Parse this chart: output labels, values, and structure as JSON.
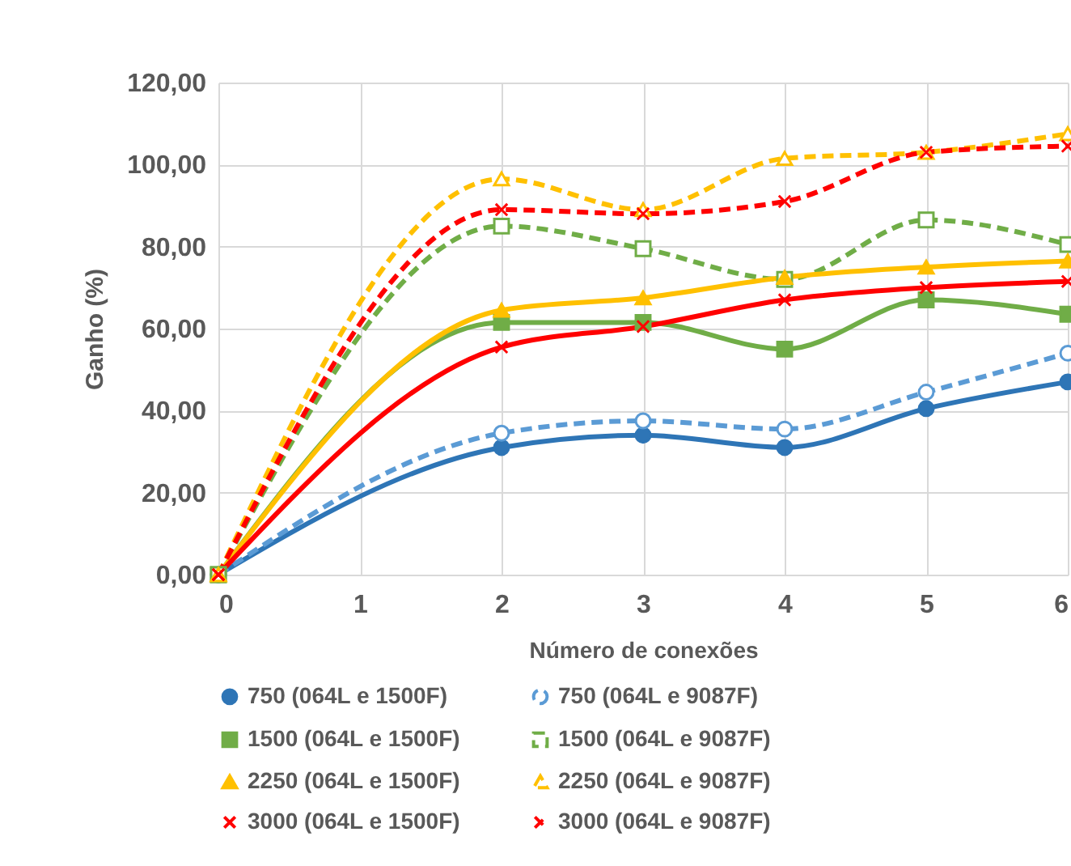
{
  "chart_data": {
    "type": "line",
    "xlabel": "Número de conexões",
    "ylabel": "Ganho (%)",
    "x": [
      0,
      2,
      3,
      4,
      5,
      6
    ],
    "xlim": [
      0,
      6
    ],
    "xticks": [
      0,
      1,
      2,
      3,
      4,
      5,
      6
    ],
    "ylim": [
      0,
      120
    ],
    "yticks": [
      {
        "value": 0,
        "label": "0,00"
      },
      {
        "value": 20,
        "label": "20,00"
      },
      {
        "value": 40,
        "label": "40,00"
      },
      {
        "value": 60,
        "label": "60,00"
      },
      {
        "value": 80,
        "label": "80,00"
      },
      {
        "value": 100,
        "label": "100,00"
      },
      {
        "value": 120,
        "label": "120,00"
      }
    ],
    "grid": true,
    "legend": "bottom",
    "series": [
      {
        "name": "750 (064L e 1500F)",
        "color": "#2e75b6",
        "marker": "circle",
        "line_style": "solid",
        "values": [
          0,
          31,
          34,
          31,
          40.5,
          47
        ]
      },
      {
        "name": "750 (064L e 9087F)",
        "color": "#5b9bd5",
        "marker": "circle",
        "line_style": "dashed",
        "values": [
          0,
          34.5,
          37.5,
          35.5,
          44.5,
          54
        ]
      },
      {
        "name": "1500 (064L e 1500F)",
        "color": "#70ad47",
        "marker": "square",
        "line_style": "solid",
        "values": [
          0,
          61.5,
          61.5,
          55,
          67,
          63.5
        ]
      },
      {
        "name": "1500 (064L e 9087F)",
        "color": "#70ad47",
        "marker": "square",
        "line_style": "dashed",
        "values": [
          0,
          85,
          79.5,
          72,
          86.5,
          80.5
        ]
      },
      {
        "name": "2250 (064L e 1500F)",
        "color": "#ffc000",
        "marker": "triangle",
        "line_style": "solid",
        "values": [
          0,
          64.5,
          67.5,
          72.5,
          75,
          76.5
        ]
      },
      {
        "name": "2250 (064L e 9087F)",
        "color": "#ffc000",
        "marker": "triangle",
        "line_style": "dashed",
        "values": [
          0,
          96.5,
          89,
          101.5,
          103,
          107.5
        ]
      },
      {
        "name": "3000 (064L e 1500F)",
        "color": "#ff0000",
        "marker": "cross",
        "line_style": "solid",
        "values": [
          0,
          55.5,
          60.5,
          67,
          70,
          71.5
        ]
      },
      {
        "name": "3000 (064L e 9087F)",
        "color": "#ff0000",
        "marker": "cross",
        "line_style": "dashed",
        "values": [
          0,
          89,
          88,
          91,
          103,
          104.5
        ]
      }
    ]
  }
}
